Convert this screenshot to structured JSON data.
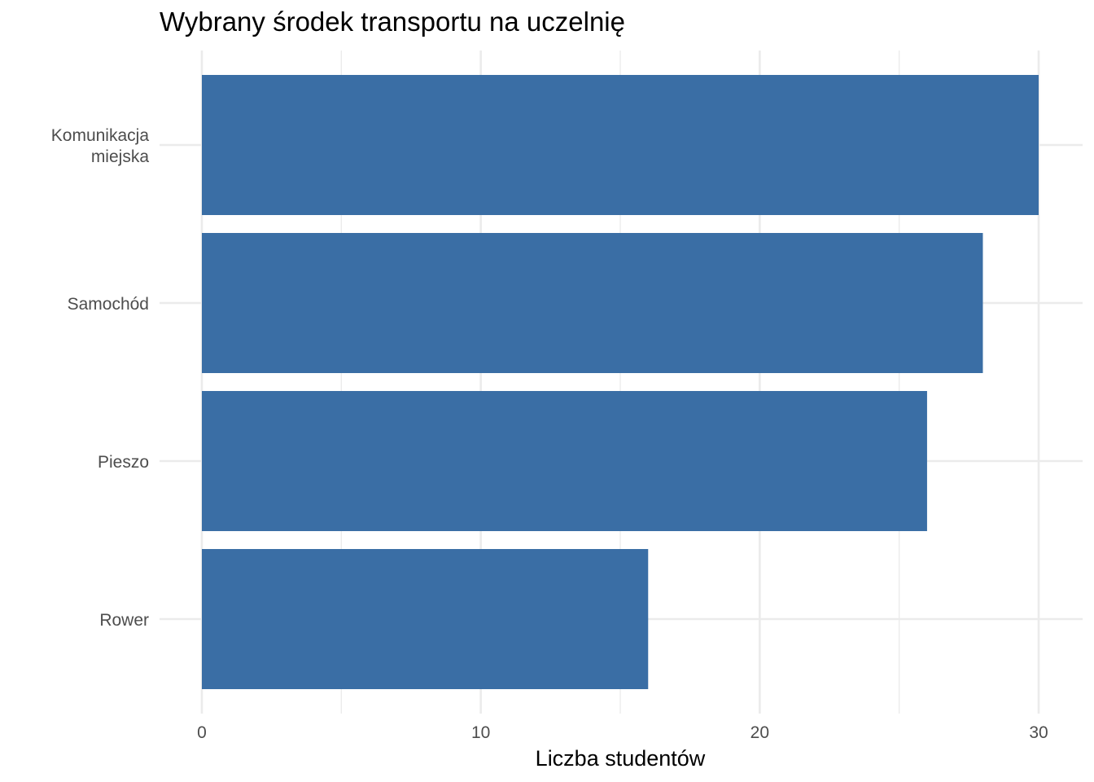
{
  "chart_data": {
    "type": "bar",
    "orientation": "horizontal",
    "title": "Wybrany środek transportu na uczelnię",
    "xlabel": "Liczba studentów",
    "ylabel": "",
    "categories": [
      [
        "Komunikacja",
        "miejska"
      ],
      [
        "Samochód"
      ],
      [
        "Pieszo"
      ],
      [
        "Rower"
      ]
    ],
    "values": [
      30,
      28,
      26,
      16
    ],
    "xlim": [
      0,
      30
    ],
    "x_ticks": [
      0,
      10,
      20,
      30
    ],
    "grid": true,
    "legend": "none",
    "bar_color": "#3a6ea5"
  }
}
